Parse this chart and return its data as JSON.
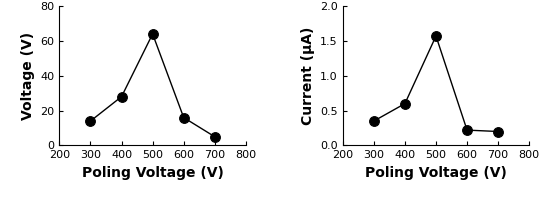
{
  "left": {
    "x": [
      300,
      400,
      500,
      600,
      700
    ],
    "y": [
      14,
      28,
      64,
      16,
      5
    ],
    "xlabel": "Poling Voltage (V)",
    "ylabel": "Voltage (V)",
    "xlim": [
      200,
      800
    ],
    "ylim": [
      0,
      80
    ],
    "xticks": [
      200,
      300,
      400,
      500,
      600,
      700,
      800
    ],
    "yticks": [
      0,
      20,
      40,
      60,
      80
    ]
  },
  "right": {
    "x": [
      300,
      400,
      500,
      600,
      700
    ],
    "y": [
      0.35,
      0.6,
      1.57,
      0.22,
      0.2
    ],
    "xlabel": "Poling Voltage (V)",
    "ylabel": "Current (μA)",
    "xlim": [
      200,
      800
    ],
    "ylim": [
      0.0,
      2.0
    ],
    "xticks": [
      200,
      300,
      400,
      500,
      600,
      700,
      800
    ],
    "yticks": [
      0.0,
      0.5,
      1.0,
      1.5,
      2.0
    ]
  },
  "marker": "o",
  "markersize": 7,
  "markercolor": "black",
  "linecolor": "black",
  "linewidth": 1.0,
  "markerfacecolor": "black",
  "xlabel_fontsize": 10,
  "ylabel_fontsize": 10,
  "tick_fontsize": 8,
  "background_color": "#ffffff"
}
